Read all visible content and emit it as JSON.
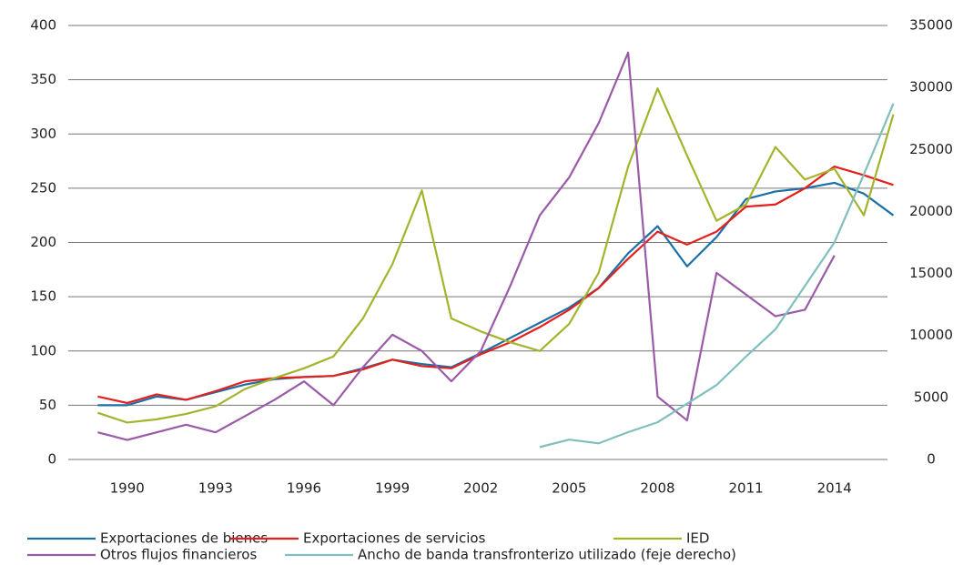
{
  "chart_data": {
    "type": "line",
    "x": [
      1989,
      1990,
      1991,
      1992,
      1993,
      1994,
      1995,
      1996,
      1997,
      1998,
      1999,
      2000,
      2001,
      2002,
      2003,
      2004,
      2005,
      2006,
      2007,
      2008,
      2009,
      2010,
      2011,
      2012,
      2013,
      2014,
      2015,
      2016
    ],
    "xlim": [
      1988,
      2015.8
    ],
    "xticks": [
      1990,
      1993,
      1996,
      1999,
      2002,
      2005,
      2008,
      2011,
      2014
    ],
    "ylim": [
      0,
      400
    ],
    "yticks": [
      0,
      50,
      100,
      150,
      200,
      250,
      300,
      350,
      400
    ],
    "y2lim": [
      0,
      35000
    ],
    "y2ticks": [
      0,
      5000,
      10000,
      15000,
      20000,
      25000,
      30000,
      35000
    ],
    "grid": true,
    "legend": "bottom",
    "series": [
      {
        "name": "Exportaciones de bienes",
        "color": "#1a6fa8",
        "values": [
          50,
          50,
          58,
          55,
          62,
          69,
          74,
          76,
          77,
          84,
          92,
          88,
          85,
          98,
          112,
          126,
          140,
          158,
          190,
          215,
          178,
          205,
          240,
          247,
          250,
          255,
          245,
          225
        ]
      },
      {
        "name": "Exportaciones de servicios",
        "color": "#e3211c",
        "values": [
          58,
          52,
          60,
          55,
          63,
          72,
          75,
          76,
          77,
          83,
          92,
          86,
          84,
          97,
          108,
          122,
          138,
          158,
          185,
          210,
          198,
          210,
          233,
          235,
          250,
          270,
          262,
          253
        ]
      },
      {
        "name": "IED",
        "color": "#a3b42c",
        "values": [
          43,
          34,
          37,
          42,
          49,
          65,
          75,
          84,
          95,
          130,
          180,
          248,
          130,
          118,
          108,
          100,
          125,
          172,
          270,
          342,
          280,
          220,
          235,
          288,
          258,
          268,
          225,
          318
        ]
      },
      {
        "name": "Otros flujos financieros",
        "color": "#9a5aa8",
        "values": [
          25,
          18,
          25,
          32,
          25,
          40,
          55,
          72,
          50,
          85,
          115,
          100,
          72,
          100,
          160,
          225,
          260,
          310,
          375,
          58,
          36,
          172,
          152,
          132,
          138,
          188,
          null,
          null
        ]
      },
      {
        "name": "Ancho de banda transfronterizo utilizado (feje derecho)",
        "color": "#80bfbd",
        "axis": "y2",
        "values": [
          null,
          null,
          null,
          null,
          null,
          null,
          null,
          null,
          null,
          null,
          null,
          null,
          null,
          null,
          null,
          1000,
          1600,
          1300,
          2200,
          3000,
          4500,
          6000,
          8300,
          10500,
          14000,
          17500,
          23000,
          28700
        ]
      }
    ]
  }
}
